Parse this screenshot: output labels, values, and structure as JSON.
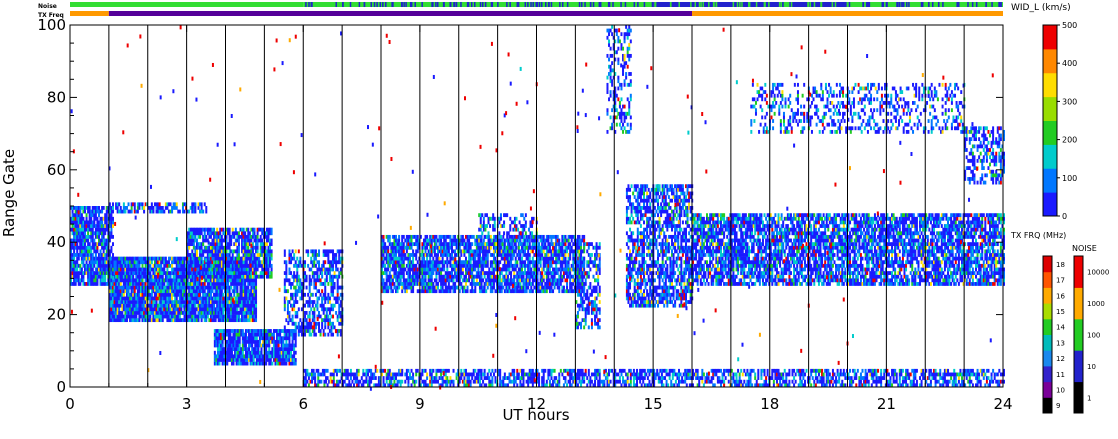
{
  "chart_data": {
    "type": "heatmap",
    "title": "",
    "xlabel": "UT hours",
    "ylabel": "Range Gate",
    "xlim": [
      0,
      24
    ],
    "ylim": [
      0,
      100
    ],
    "x_ticks": [
      "0",
      "3",
      "6",
      "9",
      "12",
      "15",
      "18",
      "21",
      "24"
    ],
    "y_ticks": [
      "0",
      "20",
      "40",
      "60",
      "80",
      "100"
    ],
    "grid": "vertical lines every hour",
    "status_bars": {
      "noise_label": "Noise",
      "txfreq_label": "TX Freq",
      "noise_segments": [
        {
          "from": 0,
          "to": 6.0,
          "color": "#33dd33"
        },
        {
          "from": 6.0,
          "to": 15.0,
          "color": "#33dd33",
          "mixed_with": "#2222cc"
        },
        {
          "from": 15.0,
          "to": 20.0,
          "color": "#2222cc",
          "mixed_with": "#33dd33"
        },
        {
          "from": 20.0,
          "to": 24,
          "color": "#33dd33",
          "mixed_with": "#2222cc"
        }
      ],
      "txfreq_segments": [
        {
          "from": 0,
          "to": 1.0,
          "color": "#ff9900"
        },
        {
          "from": 1.0,
          "to": 16.0,
          "color": "#550099"
        },
        {
          "from": 16.0,
          "to": 24,
          "color": "#ff9900"
        }
      ]
    },
    "scatter_regions": [
      {
        "x0": 0.0,
        "x1": 1.1,
        "y0": 28,
        "y1": 50,
        "density": 0.85
      },
      {
        "x0": 1.0,
        "x1": 4.8,
        "y0": 18,
        "y1": 36,
        "density": 0.95
      },
      {
        "x0": 1.0,
        "x1": 3.5,
        "y0": 48,
        "y1": 51,
        "density": 0.6
      },
      {
        "x0": 3.0,
        "x1": 5.2,
        "y0": 30,
        "y1": 44,
        "density": 0.8
      },
      {
        "x0": 3.7,
        "x1": 5.8,
        "y0": 6,
        "y1": 16,
        "density": 0.9
      },
      {
        "x0": 5.5,
        "x1": 7.0,
        "y0": 14,
        "y1": 38,
        "density": 0.55
      },
      {
        "x0": 8.0,
        "x1": 13.2,
        "y0": 26,
        "y1": 42,
        "density": 0.8
      },
      {
        "x0": 10.5,
        "x1": 12.0,
        "y0": 38,
        "y1": 48,
        "density": 0.45
      },
      {
        "x0": 13.0,
        "x1": 13.6,
        "y0": 16,
        "y1": 40,
        "density": 0.55
      },
      {
        "x0": 14.3,
        "x1": 16.0,
        "y0": 22,
        "y1": 56,
        "density": 0.65
      },
      {
        "x0": 16.0,
        "x1": 24.0,
        "y0": 28,
        "y1": 48,
        "density": 0.75
      },
      {
        "x0": 17.5,
        "x1": 23.0,
        "y0": 70,
        "y1": 84,
        "density": 0.3
      },
      {
        "x0": 23.0,
        "x1": 24.0,
        "y0": 56,
        "y1": 72,
        "density": 0.45
      },
      {
        "x0": 6.0,
        "x1": 24.0,
        "y0": 0,
        "y1": 5,
        "density": 0.6
      },
      {
        "x0": 13.8,
        "x1": 14.4,
        "y0": 70,
        "y1": 100,
        "density": 0.35
      }
    ],
    "velocity_colorbar": {
      "label": "WID_L (km/s)",
      "ticks": [
        "0",
        "100",
        "200",
        "300",
        "400",
        "500"
      ],
      "colors": [
        "#1a1aff",
        "#0077ff",
        "#00cccc",
        "#22cc22",
        "#99dd00",
        "#ffdd00",
        "#ff8800",
        "#ee0000"
      ]
    },
    "txfreq_colorbar": {
      "label": "TX FRQ (MHz)",
      "ticks": [
        "9",
        "10",
        "11",
        "12",
        "13",
        "14",
        "15",
        "16",
        "17",
        "18"
      ],
      "colors": [
        "#000000",
        "#7a0099",
        "#3322cc",
        "#1a88ee",
        "#00bbbb",
        "#22cc22",
        "#aadd00",
        "#ffaa00",
        "#ff5500",
        "#dd0000"
      ]
    },
    "noise_colorbar": {
      "label": "NOISE",
      "ticks": [
        "1",
        "10",
        "100",
        "1000",
        "10000"
      ],
      "colors": [
        "#000000",
        "#2222cc",
        "#22cc22",
        "#ffaa00",
        "#ee0000"
      ]
    }
  }
}
